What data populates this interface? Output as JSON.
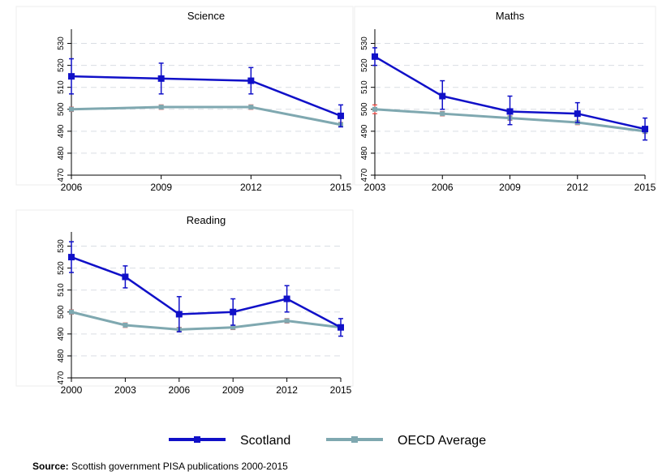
{
  "chart_data": [
    {
      "type": "line",
      "title": "Science",
      "x": [
        2006,
        2009,
        2012,
        2015
      ],
      "x_tick_labels": [
        "2006",
        "2009",
        "2012",
        "2015"
      ],
      "ylim": [
        470,
        535
      ],
      "y_ticks": [
        470,
        480,
        490,
        500,
        510,
        520,
        530
      ],
      "grid": true,
      "series": [
        {
          "name": "Scotland",
          "color": "#1010c8",
          "values": [
            515,
            514,
            513,
            497
          ],
          "ci_low": [
            507,
            507,
            507,
            492
          ],
          "ci_high": [
            523,
            521,
            519,
            502
          ]
        },
        {
          "name": "OECD Average",
          "color": "#7fa8b0",
          "values": [
            500,
            501,
            501,
            493
          ],
          "ci_low": [
            499,
            500,
            500,
            492
          ],
          "ci_high": [
            501,
            502,
            502,
            494
          ]
        }
      ]
    },
    {
      "type": "line",
      "title": "Maths",
      "x": [
        2003,
        2006,
        2009,
        2012,
        2015
      ],
      "x_tick_labels": [
        "2003",
        "2006",
        "2009",
        "2012",
        "2015"
      ],
      "ylim": [
        470,
        535
      ],
      "y_ticks": [
        470,
        480,
        490,
        500,
        510,
        520,
        530
      ],
      "grid": true,
      "series": [
        {
          "name": "Scotland",
          "color": "#1010c8",
          "values": [
            524,
            506,
            499,
            498,
            491
          ],
          "ci_low": [
            520,
            500,
            493,
            494,
            486
          ],
          "ci_high": [
            528,
            513,
            506,
            503,
            496
          ]
        },
        {
          "name": "OECD Average",
          "color": "#7fa8b0",
          "values": [
            500,
            498,
            496,
            494,
            490
          ],
          "ci_low": [
            498,
            497,
            495,
            493,
            489
          ],
          "ci_high": [
            502,
            499,
            497,
            495,
            491
          ]
        }
      ]
    },
    {
      "type": "line",
      "title": "Reading",
      "x": [
        2000,
        2003,
        2006,
        2009,
        2012,
        2015
      ],
      "x_tick_labels": [
        "2000",
        "2003",
        "2006",
        "2009",
        "2012",
        "2015"
      ],
      "ylim": [
        470,
        535
      ],
      "y_ticks": [
        470,
        480,
        490,
        500,
        510,
        520,
        530
      ],
      "grid": true,
      "series": [
        {
          "name": "Scotland",
          "color": "#1010c8",
          "values": [
            525,
            516,
            499,
            500,
            506,
            493
          ],
          "ci_low": [
            518,
            511,
            491,
            494,
            500,
            489
          ],
          "ci_high": [
            532,
            521,
            507,
            506,
            512,
            497
          ]
        },
        {
          "name": "OECD Average",
          "color": "#7fa8b0",
          "values": [
            500,
            494,
            492,
            493,
            496,
            493
          ],
          "ci_low": [
            499,
            493,
            491,
            492,
            495,
            492
          ],
          "ci_high": [
            501,
            495,
            493,
            494,
            497,
            494
          ]
        }
      ]
    }
  ],
  "legend": [
    {
      "label": "Scotland",
      "color": "#1010c8"
    },
    {
      "label": "OECD Average",
      "color": "#7fa8b0"
    }
  ],
  "source": {
    "label": "Source:",
    "text": " Scottish government PISA publications 2000-2015"
  }
}
